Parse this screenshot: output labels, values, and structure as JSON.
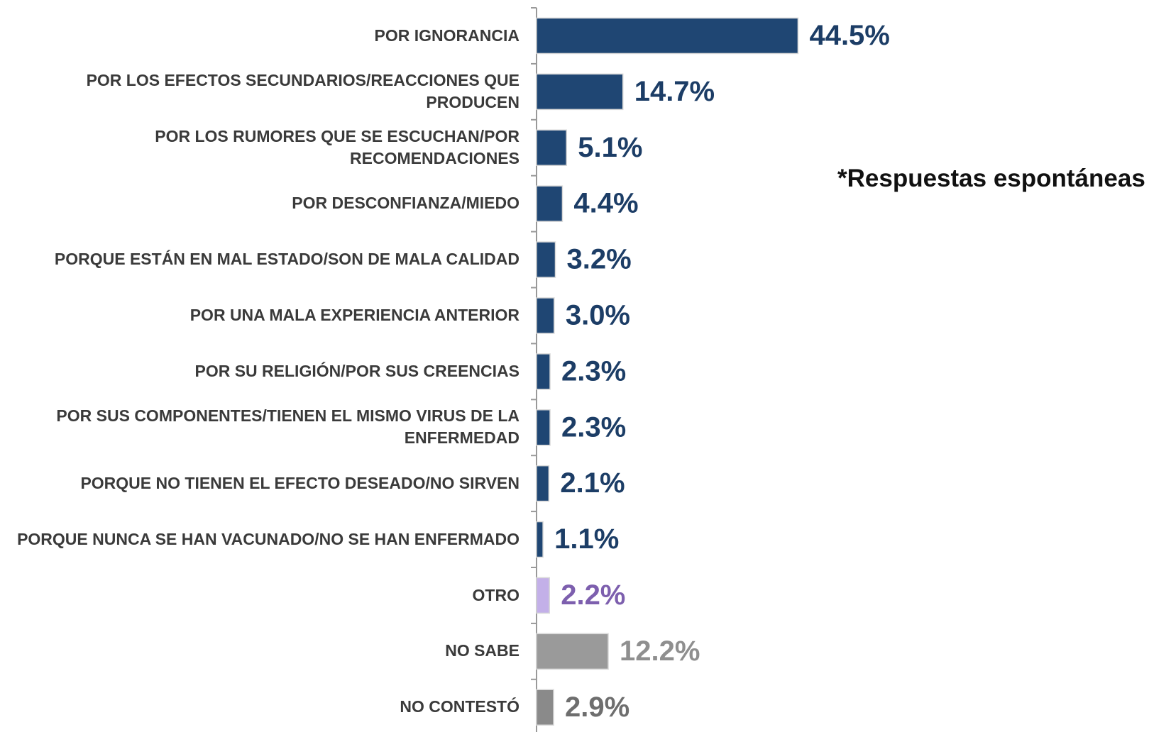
{
  "chart_data": {
    "type": "barh",
    "annotation": "*Respuestas espontáneas",
    "categories": [
      "POR IGNORANCIA",
      "POR LOS EFECTOS SECUNDARIOS/REACCIONES QUE PRODUCEN",
      "POR LOS RUMORES QUE SE ESCUCHAN/POR RECOMENDACIONES",
      "POR DESCONFIANZA/MIEDO",
      "PORQUE ESTÁN EN MAL ESTADO/SON DE MALA CALIDAD",
      "POR UNA MALA EXPERIENCIA ANTERIOR",
      "POR SU RELIGIÓN/POR SUS CREENCIAS",
      "POR SUS COMPONENTES/TIENEN EL MISMO VIRUS DE LA ENFERMEDAD",
      "PORQUE NO TIENEN EL EFECTO DESEADO/NO SIRVEN",
      "PORQUE NUNCA SE HAN VACUNADO/NO SE HAN ENFERMADO",
      "OTRO",
      "NO SABE",
      "NO CONTESTÓ"
    ],
    "values": [
      44.5,
      14.7,
      5.1,
      4.4,
      3.2,
      3.0,
      2.3,
      2.3,
      2.1,
      1.1,
      2.2,
      12.2,
      2.9
    ],
    "value_labels": [
      "44.5%",
      "14.7%",
      "5.1%",
      "4.4%",
      "3.2%",
      "3.0%",
      "2.3%",
      "2.3%",
      "2.1%",
      "1.1%",
      "2.2%",
      "12.2%",
      "2.9%"
    ],
    "colors": [
      "#1f4673",
      "#1f4673",
      "#1f4673",
      "#1f4673",
      "#1f4673",
      "#1f4673",
      "#1f4673",
      "#1f4673",
      "#1f4673",
      "#1f4673",
      "#c3b0e8",
      "#9a9a9a",
      "#8a8a8a"
    ],
    "label_colors": [
      "#1c3d66",
      "#1c3d66",
      "#1c3d66",
      "#1c3d66",
      "#1c3d66",
      "#1c3d66",
      "#1c3d66",
      "#1c3d66",
      "#1c3d66",
      "#1c3d66",
      "#7d5fae",
      "#8f8f8f",
      "#6e6e6e"
    ]
  }
}
